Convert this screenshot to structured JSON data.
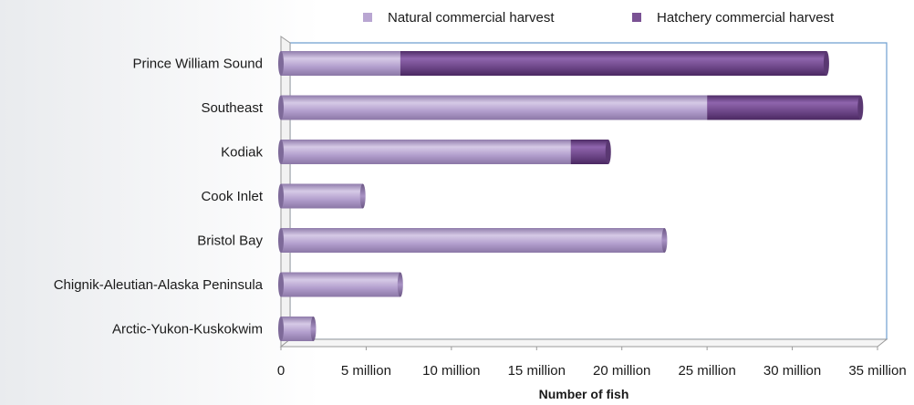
{
  "chart_data": {
    "type": "bar",
    "orientation": "horizontal",
    "stacked": true,
    "title": "",
    "xlabel": "Number of fish",
    "ylabel": "",
    "xlim": [
      0,
      35000000
    ],
    "x_ticks": [
      {
        "value": 0,
        "label": "0"
      },
      {
        "value": 5000000,
        "label": "5 million"
      },
      {
        "value": 10000000,
        "label": "10 million"
      },
      {
        "value": 15000000,
        "label": "15 million"
      },
      {
        "value": 20000000,
        "label": "20 million"
      },
      {
        "value": 25000000,
        "label": "25 million"
      },
      {
        "value": 30000000,
        "label": "30 million"
      },
      {
        "value": 35000000,
        "label": "35 million"
      }
    ],
    "categories": [
      "Prince William Sound",
      "Southeast",
      "Kodiak",
      "Cook Inlet",
      "Bristol Bay",
      "Chignik-Aleutian-Alaska Peninsula",
      "Arctic-Yukon-Kuskokwim"
    ],
    "series": [
      {
        "name": "Natural commercial harvest",
        "color": "#b9a6d2",
        "values": [
          7000000,
          25000000,
          17000000,
          4800000,
          22500000,
          7000000,
          1900000
        ]
      },
      {
        "name": "Hatchery commercial harvest",
        "color": "#7a5294",
        "values": [
          25000000,
          9000000,
          2200000,
          0,
          0,
          0,
          0
        ]
      }
    ],
    "legend_position": "top-right",
    "grid": false
  }
}
